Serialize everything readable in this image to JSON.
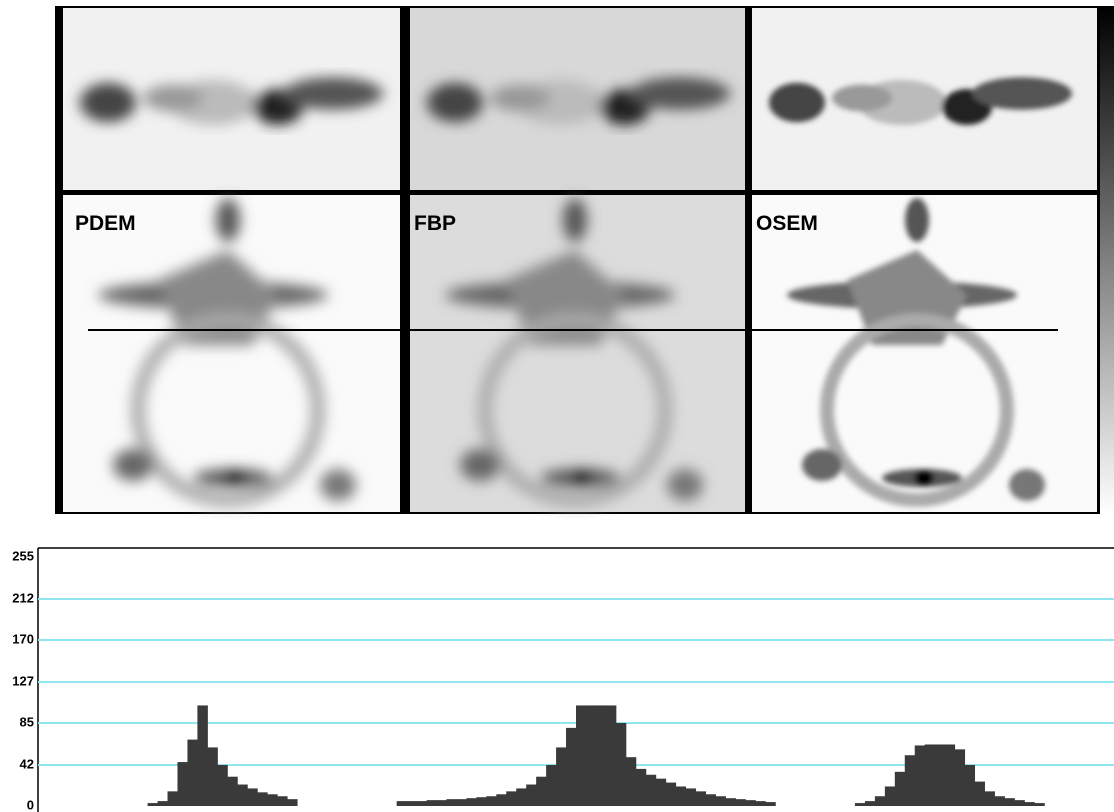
{
  "panels": [
    {
      "label": "PDEM"
    },
    {
      "label": "FBP"
    },
    {
      "label": "OSEM"
    }
  ],
  "chart_data": {
    "type": "bar",
    "color": "#3a3a3a",
    "grid": true,
    "grid_color": "#8fe6ef",
    "ylim": [
      0,
      255
    ],
    "yticks": [
      0,
      42,
      85,
      127,
      170,
      212,
      255
    ],
    "values": [
      null,
      null,
      null,
      null,
      null,
      null,
      null,
      null,
      null,
      null,
      null,
      3,
      5,
      15,
      45,
      68,
      103,
      60,
      42,
      30,
      22,
      18,
      14,
      12,
      10,
      7,
      null,
      null,
      null,
      null,
      null,
      null,
      null,
      null,
      null,
      null,
      5,
      5,
      5,
      6,
      6,
      7,
      7,
      8,
      9,
      10,
      12,
      15,
      18,
      22,
      30,
      42,
      60,
      80,
      103,
      103,
      103,
      103,
      85,
      50,
      38,
      32,
      28,
      24,
      20,
      18,
      15,
      12,
      10,
      8,
      7,
      6,
      5,
      4,
      null,
      null,
      null,
      null,
      null,
      null,
      null,
      null,
      3,
      5,
      10,
      20,
      35,
      52,
      62,
      63,
      63,
      63,
      58,
      42,
      25,
      15,
      10,
      8,
      6,
      4,
      3,
      null,
      null,
      null,
      null,
      null,
      null,
      null
    ]
  }
}
